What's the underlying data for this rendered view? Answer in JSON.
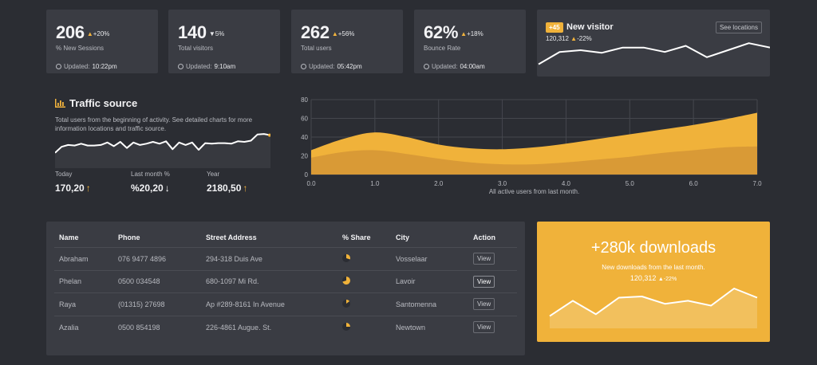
{
  "stats": [
    {
      "value": "206",
      "direction": "up",
      "change": "+20%",
      "label": "% New Sessions",
      "updated_prefix": "Updated:",
      "updated": "10:22pm"
    },
    {
      "value": "140",
      "direction": "down",
      "change": "5%",
      "label": "Total visitors",
      "updated_prefix": "Updated:",
      "updated": "9:10am"
    },
    {
      "value": "262",
      "direction": "up",
      "change": "+56%",
      "label": "Total users",
      "updated_prefix": "Updated:",
      "updated": "05:42pm"
    },
    {
      "value": "62%",
      "direction": "up",
      "change": "+18%",
      "label": "Bounce Rate",
      "updated_prefix": "Updated:",
      "updated": "04:00am"
    }
  ],
  "visitor": {
    "badge": "+45",
    "title": "New visitor",
    "value": "120,312",
    "change": "-22%",
    "button": "See locations",
    "spark": [
      14,
      28,
      30,
      27,
      33,
      33,
      28,
      35,
      22,
      30,
      38,
      33
    ]
  },
  "traffic": {
    "title": "Traffic source",
    "description": "Total users from the beginning of activity. See detailed charts for more information locations and traffic source.",
    "spark": [
      25,
      35,
      38,
      37,
      40,
      37,
      37,
      38,
      42,
      36,
      43,
      33,
      42,
      38,
      40,
      43,
      40,
      44,
      31,
      42,
      38,
      42,
      30,
      41,
      40,
      41,
      41,
      40,
      44,
      43,
      45,
      55,
      56,
      54
    ],
    "stats": [
      {
        "label": "Today",
        "value": "170,20",
        "arrow": "up"
      },
      {
        "label": "Last month %",
        "value": "%20,20",
        "arrow": "down"
      },
      {
        "label": "Year",
        "value": "2180,50",
        "arrow": "up"
      }
    ]
  },
  "chart_data": {
    "type": "area",
    "x": [
      0,
      0.5,
      1.0,
      1.5,
      2.0,
      2.5,
      3.0,
      3.5,
      4.0,
      4.5,
      5.0,
      5.5,
      6.0,
      6.5,
      7.0
    ],
    "series": [
      {
        "values": [
          26,
          38,
          45,
          40,
          32,
          28,
          27,
          29,
          33,
          38,
          43,
          48,
          53,
          59,
          66
        ]
      },
      {
        "values": [
          18,
          24,
          26,
          22,
          17,
          13,
          11,
          11,
          13,
          16,
          19,
          23,
          26,
          29,
          30
        ]
      }
    ],
    "xlabel": "All active users from last month.",
    "x_ticks": [
      "0.0",
      "1.0",
      "2.0",
      "3.0",
      "4.0",
      "5.0",
      "6.0",
      "7.0"
    ],
    "y_ticks": [
      "0",
      "20",
      "40",
      "60",
      "80"
    ],
    "xlim": [
      0,
      7
    ],
    "ylim": [
      0,
      80
    ],
    "grid": true,
    "colors": [
      "#f0b23a",
      "#d99a36"
    ]
  },
  "table": {
    "headers": [
      "Name",
      "Phone",
      "Street Address",
      "% Share",
      "City",
      "Action"
    ],
    "rows": [
      {
        "name": "Abraham",
        "phone": "076 9477 4896",
        "address": "294-318 Duis Ave",
        "share": 0.3,
        "city": "Vosselaar",
        "action": "View"
      },
      {
        "name": "Phelan",
        "phone": "0500 034548",
        "address": "680-1097 Mi Rd.",
        "share": 0.7,
        "city": "Lavoir",
        "action": "View"
      },
      {
        "name": "Raya",
        "phone": "(01315) 27698",
        "address": "Ap #289-8161 In Avenue",
        "share": 0.15,
        "city": "Santomenna",
        "action": "View"
      },
      {
        "name": "Azalia",
        "phone": "0500 854198",
        "address": "226-4861 Augue. St.",
        "share": 0.25,
        "city": "Newtown",
        "action": "View"
      }
    ]
  },
  "downloads": {
    "title": "+280k downloads",
    "subtitle": "New downloads from the last month.",
    "value": "120,312",
    "change": "-22%",
    "spark": [
      20,
      45,
      23,
      50,
      52,
      40,
      45,
      37,
      65,
      50
    ]
  },
  "colors": {
    "accent": "#f0b23a",
    "background": "#2b2d33",
    "card": "#3a3c43"
  }
}
